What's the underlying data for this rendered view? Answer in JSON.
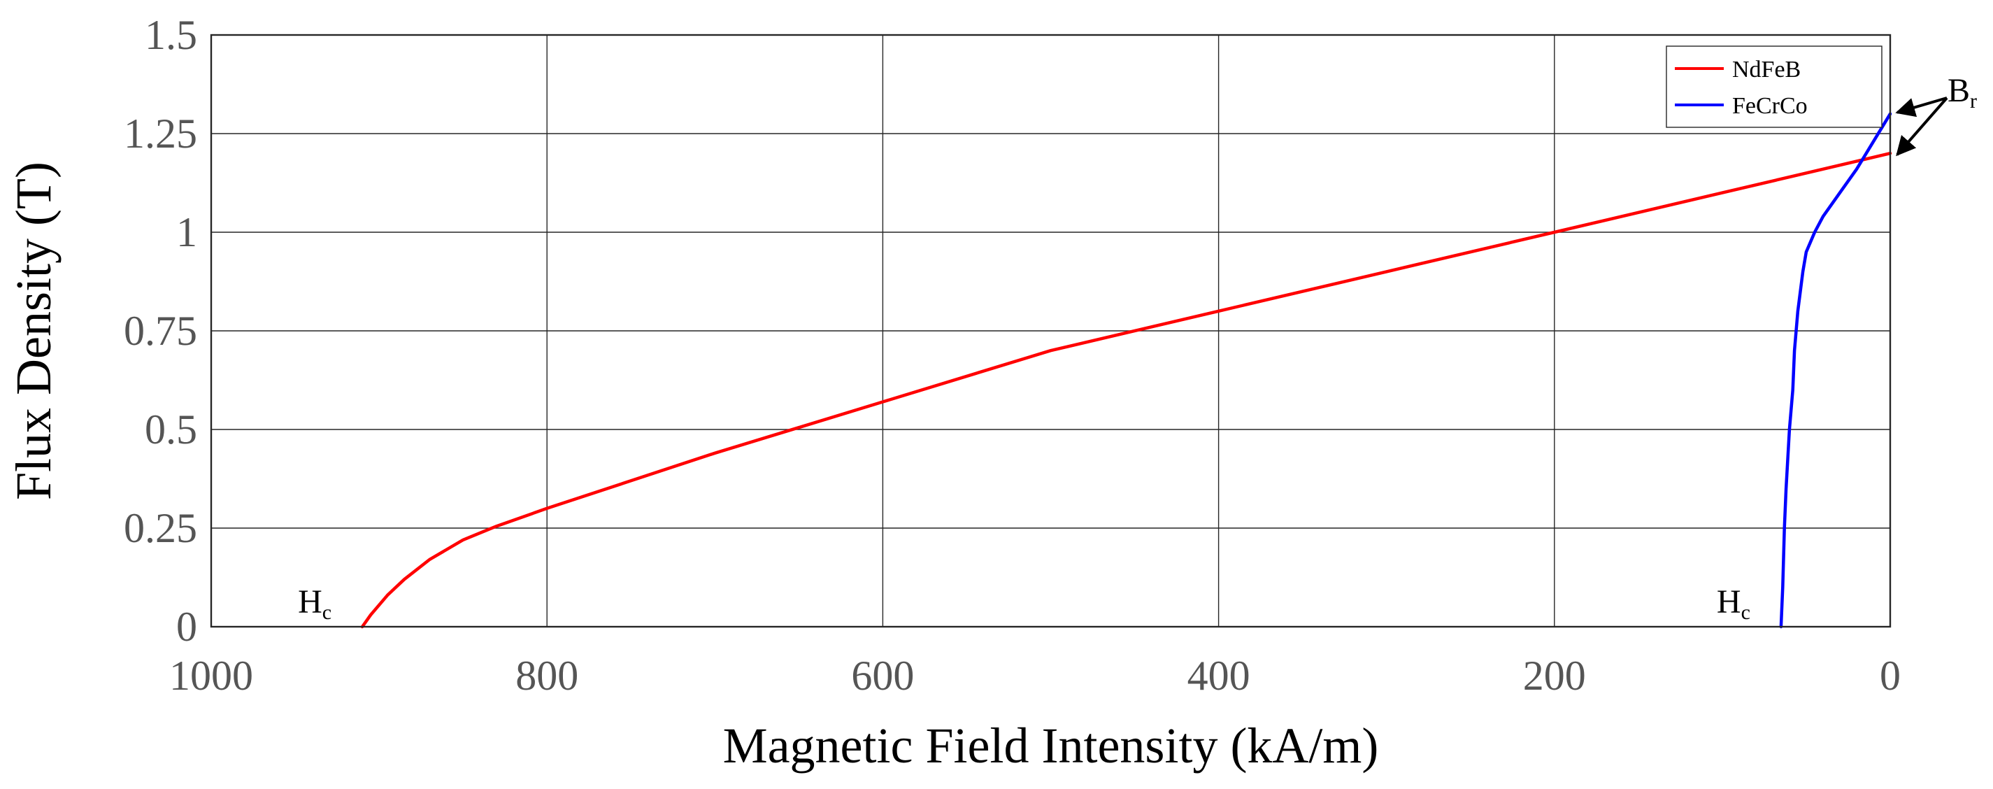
{
  "chart_data": {
    "type": "line",
    "title": "",
    "xlabel": "Magnetic Field Intensity (kA/m)",
    "ylabel": "Flux Density (T)",
    "xlim": [
      1000,
      0
    ],
    "ylim": [
      0,
      1.5
    ],
    "x_reversed": true,
    "grid": true,
    "legend_position": "top-right",
    "xticks": [
      1000,
      800,
      600,
      400,
      200,
      0
    ],
    "xtick_labels": [
      "1000",
      "800",
      "600",
      "400",
      "200",
      "0"
    ],
    "yticks": [
      0,
      0.25,
      0.5,
      0.75,
      1,
      1.25,
      1.5
    ],
    "ytick_labels": [
      "0",
      "0.25",
      "0.5",
      "0.75",
      "1",
      "1.25",
      "1.5"
    ],
    "series": [
      {
        "name": "NdFeB",
        "color": "#ff0000",
        "x": [
          0,
          100,
          200,
          300,
          400,
          500,
          600,
          650,
          700,
          750,
          800,
          830,
          850,
          870,
          885,
          895,
          905,
          910
        ],
        "y": [
          1.2,
          1.1,
          1.0,
          0.9,
          0.8,
          0.7,
          0.57,
          0.505,
          0.44,
          0.37,
          0.3,
          0.255,
          0.22,
          0.17,
          0.12,
          0.08,
          0.03,
          0.0
        ]
      },
      {
        "name": "FeCrCo",
        "color": "#0000ff",
        "x": [
          0,
          10,
          20,
          30,
          40,
          45,
          50,
          52,
          55,
          57,
          58,
          60,
          62,
          63,
          64,
          65
        ],
        "y": [
          1.3,
          1.23,
          1.16,
          1.1,
          1.04,
          1.0,
          0.95,
          0.9,
          0.8,
          0.7,
          0.6,
          0.5,
          0.35,
          0.25,
          0.1,
          0.0
        ]
      }
    ],
    "annotations": [
      {
        "id": "hc-ndfeb",
        "main": "H",
        "sub": "c",
        "at_x": 910,
        "at_y": 0
      },
      {
        "id": "hc-fecrco",
        "main": "H",
        "sub": "c",
        "at_x": 65,
        "at_y": 0
      },
      {
        "id": "br",
        "main": "B",
        "sub": "r",
        "arrows_to": [
          [
            0,
            1.3
          ],
          [
            0,
            1.2
          ]
        ]
      }
    ]
  }
}
